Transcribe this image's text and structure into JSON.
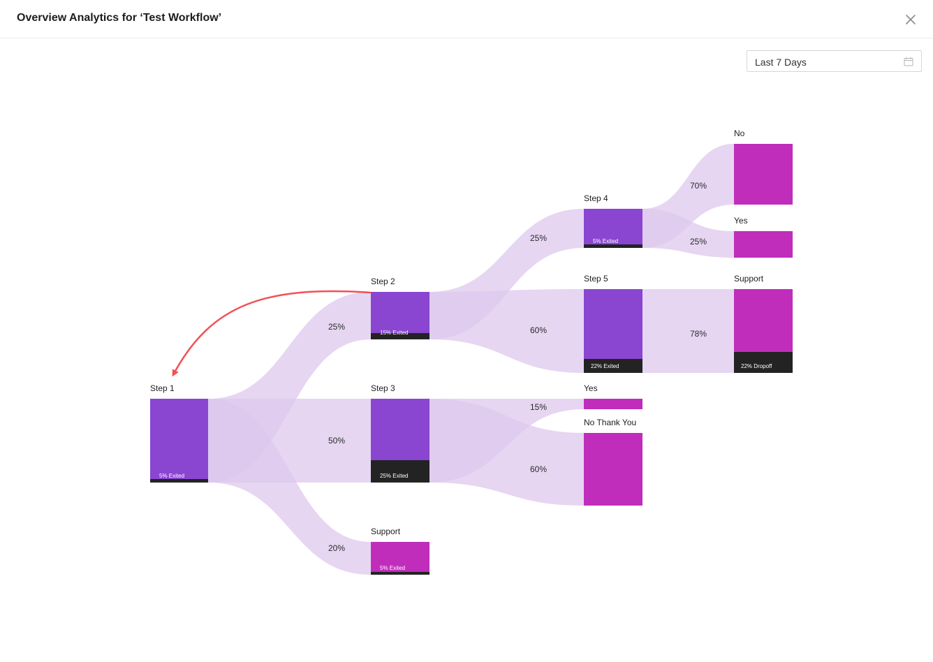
{
  "header": {
    "title": "Overview Analytics for ‘Test Workflow’",
    "close_icon": "close-icon"
  },
  "filter": {
    "date_range": "Last 7 Days",
    "icon": "calendar-icon"
  },
  "colors": {
    "step": "#8a45d1",
    "outcome": "#c02dbb",
    "exit_bar": "#232323",
    "link": "#ddc8ee",
    "link_highlight": "#c6a8e6",
    "arrow": "#f25056"
  },
  "nodes": [
    {
      "id": "step1",
      "label": "Step 1",
      "type": "step",
      "exit": "5% Exited"
    },
    {
      "id": "step2",
      "label": "Step 2",
      "type": "step",
      "exit": "15% Exited"
    },
    {
      "id": "step3",
      "label": "Step 3",
      "type": "step",
      "exit": "25% Exited"
    },
    {
      "id": "support1",
      "label": "Support",
      "type": "outcome",
      "exit": "5% Exited"
    },
    {
      "id": "step4",
      "label": "Step 4",
      "type": "step",
      "exit": "5% Exited"
    },
    {
      "id": "step5",
      "label": "Step 5",
      "type": "step",
      "exit": "22% Exited"
    },
    {
      "id": "yes1",
      "label": "Yes",
      "type": "outcome",
      "exit": ""
    },
    {
      "id": "nothanks",
      "label": "No Thank You",
      "type": "outcome",
      "exit": ""
    },
    {
      "id": "no",
      "label": "No",
      "type": "outcome",
      "exit": ""
    },
    {
      "id": "yes2",
      "label": "Yes",
      "type": "outcome",
      "exit": ""
    },
    {
      "id": "support2",
      "label": "Support",
      "type": "outcome",
      "exit": "22% Dropoff"
    }
  ],
  "links": [
    {
      "from": "step1",
      "to": "step2",
      "value": "25%"
    },
    {
      "from": "step1",
      "to": "step3",
      "value": "50%"
    },
    {
      "from": "step1",
      "to": "support1",
      "value": "20%"
    },
    {
      "from": "step2",
      "to": "step4",
      "value": "25%"
    },
    {
      "from": "step2",
      "to": "step5",
      "value": "60%"
    },
    {
      "from": "step3",
      "to": "yes1",
      "value": "15%"
    },
    {
      "from": "step3",
      "to": "nothanks",
      "value": "60%"
    },
    {
      "from": "step4",
      "to": "no",
      "value": "70%"
    },
    {
      "from": "step4",
      "to": "yes2",
      "value": "25%"
    },
    {
      "from": "step5",
      "to": "support2",
      "value": "78%"
    }
  ],
  "back_arrow": {
    "from": "step2",
    "to": "step1"
  }
}
